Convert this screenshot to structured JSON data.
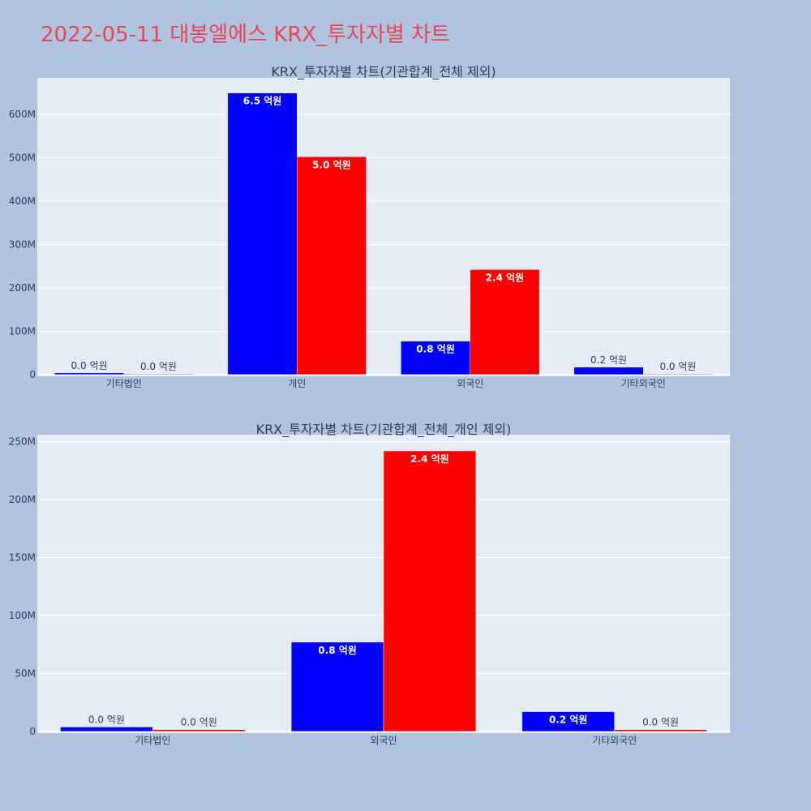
{
  "page_title": "2022-05-11 대봉엘에스 KRX_투자자별 차트",
  "colors": {
    "background": "#b0c4de",
    "plot_bg": "#e5ecf6",
    "grid": "#ffffff",
    "title": "#e8455a",
    "text": "#2a3f5f",
    "buy": "#0000ff",
    "sell": "#ff0000"
  },
  "chart_data": [
    {
      "type": "bar",
      "title": "KRX_투자자별 차트(기관합계_전체 제외)",
      "categories": [
        "기타법인",
        "개인",
        "외국인",
        "기타외국인"
      ],
      "series": [
        {
          "values": [
            3800000,
            649000000,
            77000000,
            17000000
          ],
          "labels": [
            "0.0 억원",
            "6.5 억원",
            "0.8 억원",
            "0.2 억원"
          ],
          "color": "#0000ff"
        },
        {
          "values": [
            1500000,
            502000000,
            242000000,
            1500000
          ],
          "labels": [
            "0.0 억원",
            "5.0 억원",
            "2.4 억원",
            "0.0 억원"
          ],
          "color": "#ff0000"
        }
      ],
      "ylim": [
        -4000000,
        684000000
      ],
      "yticks": [
        0,
        100000000,
        200000000,
        300000000,
        400000000,
        500000000,
        600000000
      ],
      "ytick_labels": [
        "0",
        "100M",
        "200M",
        "300M",
        "400M",
        "500M",
        "600M"
      ],
      "grid": true
    },
    {
      "type": "bar",
      "title": "KRX_투자자별 차트(기관합계_전체_개인 제외)",
      "categories": [
        "기타법인",
        "외국인",
        "기타외국인"
      ],
      "series": [
        {
          "values": [
            3800000,
            77000000,
            17000000
          ],
          "labels": [
            "0.0 억원",
            "0.8 억원",
            "0.2 억원"
          ],
          "color": "#0000ff"
        },
        {
          "values": [
            1500000,
            242000000,
            1500000
          ],
          "labels": [
            "0.0 억원",
            "2.4 억원",
            "0.0 억원"
          ],
          "color": "#ff0000"
        }
      ],
      "ylim": [
        -1500000,
        256000000
      ],
      "yticks": [
        0,
        50000000,
        100000000,
        150000000,
        200000000,
        250000000
      ],
      "ytick_labels": [
        "0",
        "50M",
        "100M",
        "150M",
        "200M",
        "250M"
      ],
      "grid": true
    }
  ]
}
